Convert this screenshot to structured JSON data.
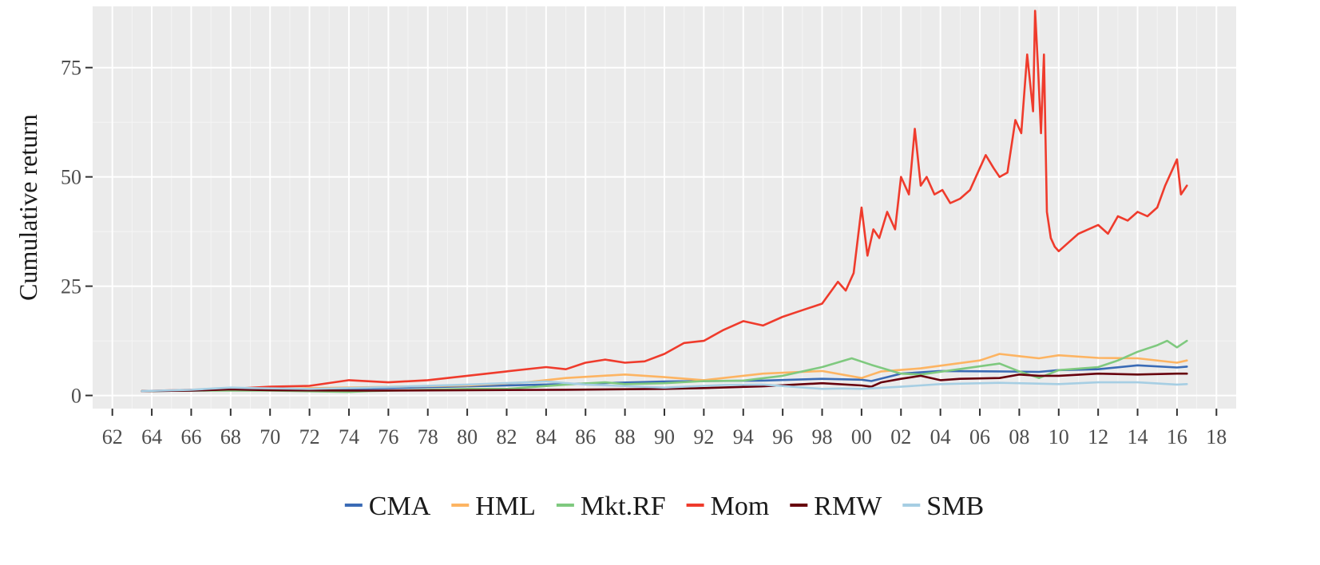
{
  "chart_data": {
    "type": "line",
    "title": "",
    "xlabel": "",
    "ylabel": "Cumulative return",
    "xlim": [
      1961.0,
      2019.0
    ],
    "ylim": [
      -3,
      89
    ],
    "x_ticks": [
      1962,
      1964,
      1966,
      1968,
      1970,
      1972,
      1974,
      1976,
      1978,
      1980,
      1982,
      1984,
      1986,
      1988,
      1990,
      1992,
      1994,
      1996,
      1998,
      2000,
      2002,
      2004,
      2006,
      2008,
      2010,
      2012,
      2014,
      2016,
      2018
    ],
    "x_tick_labels": [
      "62",
      "64",
      "66",
      "68",
      "70",
      "72",
      "74",
      "76",
      "78",
      "80",
      "82",
      "84",
      "86",
      "88",
      "90",
      "92",
      "94",
      "96",
      "98",
      "00",
      "02",
      "04",
      "06",
      "08",
      "10",
      "12",
      "14",
      "16",
      "18"
    ],
    "y_ticks": [
      0,
      25,
      50,
      75
    ],
    "y_tick_labels": [
      "0",
      "25",
      "50",
      "75"
    ],
    "grid": true,
    "background": "#ebebeb",
    "legend_position": "bottom",
    "series": [
      {
        "name": "CMA",
        "color": "#3a6bb5",
        "x": [
          1963.5,
          1966,
          1970,
          1975,
          1980,
          1985,
          1990,
          1995,
          1998,
          2000,
          2000.5,
          2002,
          2004,
          2007,
          2009,
          2010,
          2012,
          2014,
          2016,
          2016.5
        ],
        "y": [
          1,
          1.1,
          1.3,
          1.6,
          2.1,
          2.6,
          3.2,
          3.4,
          3.8,
          3.6,
          3.3,
          5.0,
          5.6,
          5.5,
          5.4,
          5.8,
          6.0,
          6.9,
          6.4,
          6.6
        ]
      },
      {
        "name": "HML",
        "color": "#fdb462",
        "x": [
          1963.5,
          1966,
          1970,
          1975,
          1980,
          1983,
          1985,
          1988,
          1990,
          1992,
          1995,
          1998,
          2000,
          2001,
          2003,
          2006,
          2007,
          2008,
          2009,
          2010,
          2012,
          2014,
          2016,
          2016.5
        ],
        "y": [
          1,
          1.2,
          1.5,
          1.9,
          2.3,
          3.0,
          4.0,
          4.8,
          4.2,
          3.5,
          5.0,
          5.6,
          4.0,
          5.5,
          6.2,
          8.0,
          9.5,
          9.0,
          8.5,
          9.2,
          8.6,
          8.5,
          7.5,
          8.0
        ]
      },
      {
        "name": "Mkt.RF",
        "color": "#7fc97f",
        "x": [
          1963.5,
          1966,
          1970,
          1974,
          1975,
          1980,
          1982,
          1985,
          1987,
          1988,
          1990,
          1992,
          1994,
          1996,
          1998,
          1999.5,
          2000.5,
          2002,
          2003,
          2007,
          2008,
          2009,
          2010,
          2012,
          2013,
          2014,
          2015,
          2015.5,
          2016,
          2016.5
        ],
        "y": [
          1,
          1.1,
          1.1,
          0.8,
          1.0,
          1.5,
          1.5,
          2.5,
          3.0,
          2.6,
          2.8,
          3.3,
          3.4,
          4.5,
          6.5,
          8.5,
          7.0,
          5.0,
          4.8,
          7.3,
          5.5,
          4.0,
          5.8,
          6.5,
          8.0,
          10.0,
          11.5,
          12.5,
          11.0,
          12.5
        ]
      },
      {
        "name": "Mom",
        "color": "#ef3b2c",
        "x": [
          1963.5,
          1965,
          1968,
          1970,
          1972,
          1974,
          1976,
          1978,
          1980,
          1982,
          1984,
          1985,
          1986,
          1987,
          1988,
          1989,
          1990,
          1991,
          1992,
          1993,
          1994,
          1995,
          1996,
          1997,
          1998,
          1998.8,
          1999.2,
          1999.6,
          2000.0,
          2000.3,
          2000.6,
          2000.9,
          2001.3,
          2001.7,
          2002.0,
          2002.4,
          2002.7,
          2003.0,
          2003.3,
          2003.7,
          2004.1,
          2004.5,
          2005.0,
          2005.5,
          2006.0,
          2006.3,
          2006.7,
          2007.0,
          2007.4,
          2007.8,
          2008.1,
          2008.4,
          2008.7,
          2008.8,
          2008.95,
          2009.1,
          2009.25,
          2009.4,
          2009.6,
          2009.8,
          2010.0,
          2010.5,
          2011.0,
          2011.5,
          2012.0,
          2012.5,
          2013.0,
          2013.5,
          2014.0,
          2014.5,
          2015.0,
          2015.4,
          2015.8,
          2016.0,
          2016.2,
          2016.5
        ],
        "y": [
          1,
          1.2,
          1.5,
          2,
          2.2,
          3.5,
          3,
          3.5,
          4.5,
          5.5,
          6.5,
          6.0,
          7.5,
          8.2,
          7.5,
          7.8,
          9.5,
          12.0,
          12.5,
          15.0,
          17.0,
          16.0,
          18.0,
          19.5,
          21.0,
          26.0,
          24.0,
          28.0,
          43.0,
          32.0,
          38.0,
          36.0,
          42.0,
          38.0,
          50.0,
          46.0,
          61.0,
          48.0,
          50.0,
          46.0,
          47.0,
          44.0,
          45.0,
          47.0,
          52.0,
          55.0,
          52.0,
          50.0,
          51.0,
          63.0,
          60.0,
          78.0,
          65.0,
          88.0,
          75.0,
          60.0,
          78.0,
          42.0,
          36.0,
          34.0,
          33.0,
          35.0,
          37.0,
          38.0,
          39.0,
          37.0,
          41.0,
          40.0,
          42.0,
          41.0,
          43.0,
          48.0,
          52.0,
          54.0,
          46.0,
          48.0
        ]
      },
      {
        "name": "RMW",
        "color": "#67000d",
        "x": [
          1963.5,
          1966,
          1968,
          1970,
          1975,
          1980,
          1985,
          1990,
          1992,
          1995,
          1998,
          2000,
          2000.5,
          2001,
          2002,
          2003,
          2004,
          2005,
          2007,
          2008,
          2009,
          2010,
          2012,
          2014,
          2016,
          2016.5
        ],
        "y": [
          1,
          1.1,
          1.4,
          1.2,
          1.1,
          1.2,
          1.3,
          1.5,
          1.7,
          2.1,
          2.8,
          2.3,
          2.0,
          3.0,
          3.8,
          4.5,
          3.5,
          3.8,
          4.0,
          4.8,
          4.5,
          4.5,
          5.0,
          4.8,
          5.0,
          5.0
        ]
      },
      {
        "name": "SMB",
        "color": "#a6cee3",
        "x": [
          1963.5,
          1966,
          1968,
          1969,
          1972,
          1975,
          1980,
          1983,
          1984,
          1986,
          1990,
          1993,
          1995,
          1998,
          1999,
          2000,
          2002,
          2004,
          2007,
          2010,
          2012,
          2014,
          2016,
          2016.5
        ],
        "y": [
          1,
          1.3,
          1.8,
          1.7,
          1.5,
          1.8,
          2.5,
          3.0,
          3.2,
          2.5,
          1.8,
          2.4,
          2.5,
          1.5,
          1.6,
          1.5,
          2.0,
          2.6,
          2.9,
          2.6,
          3.0,
          3.0,
          2.5,
          2.6
        ]
      }
    ]
  }
}
